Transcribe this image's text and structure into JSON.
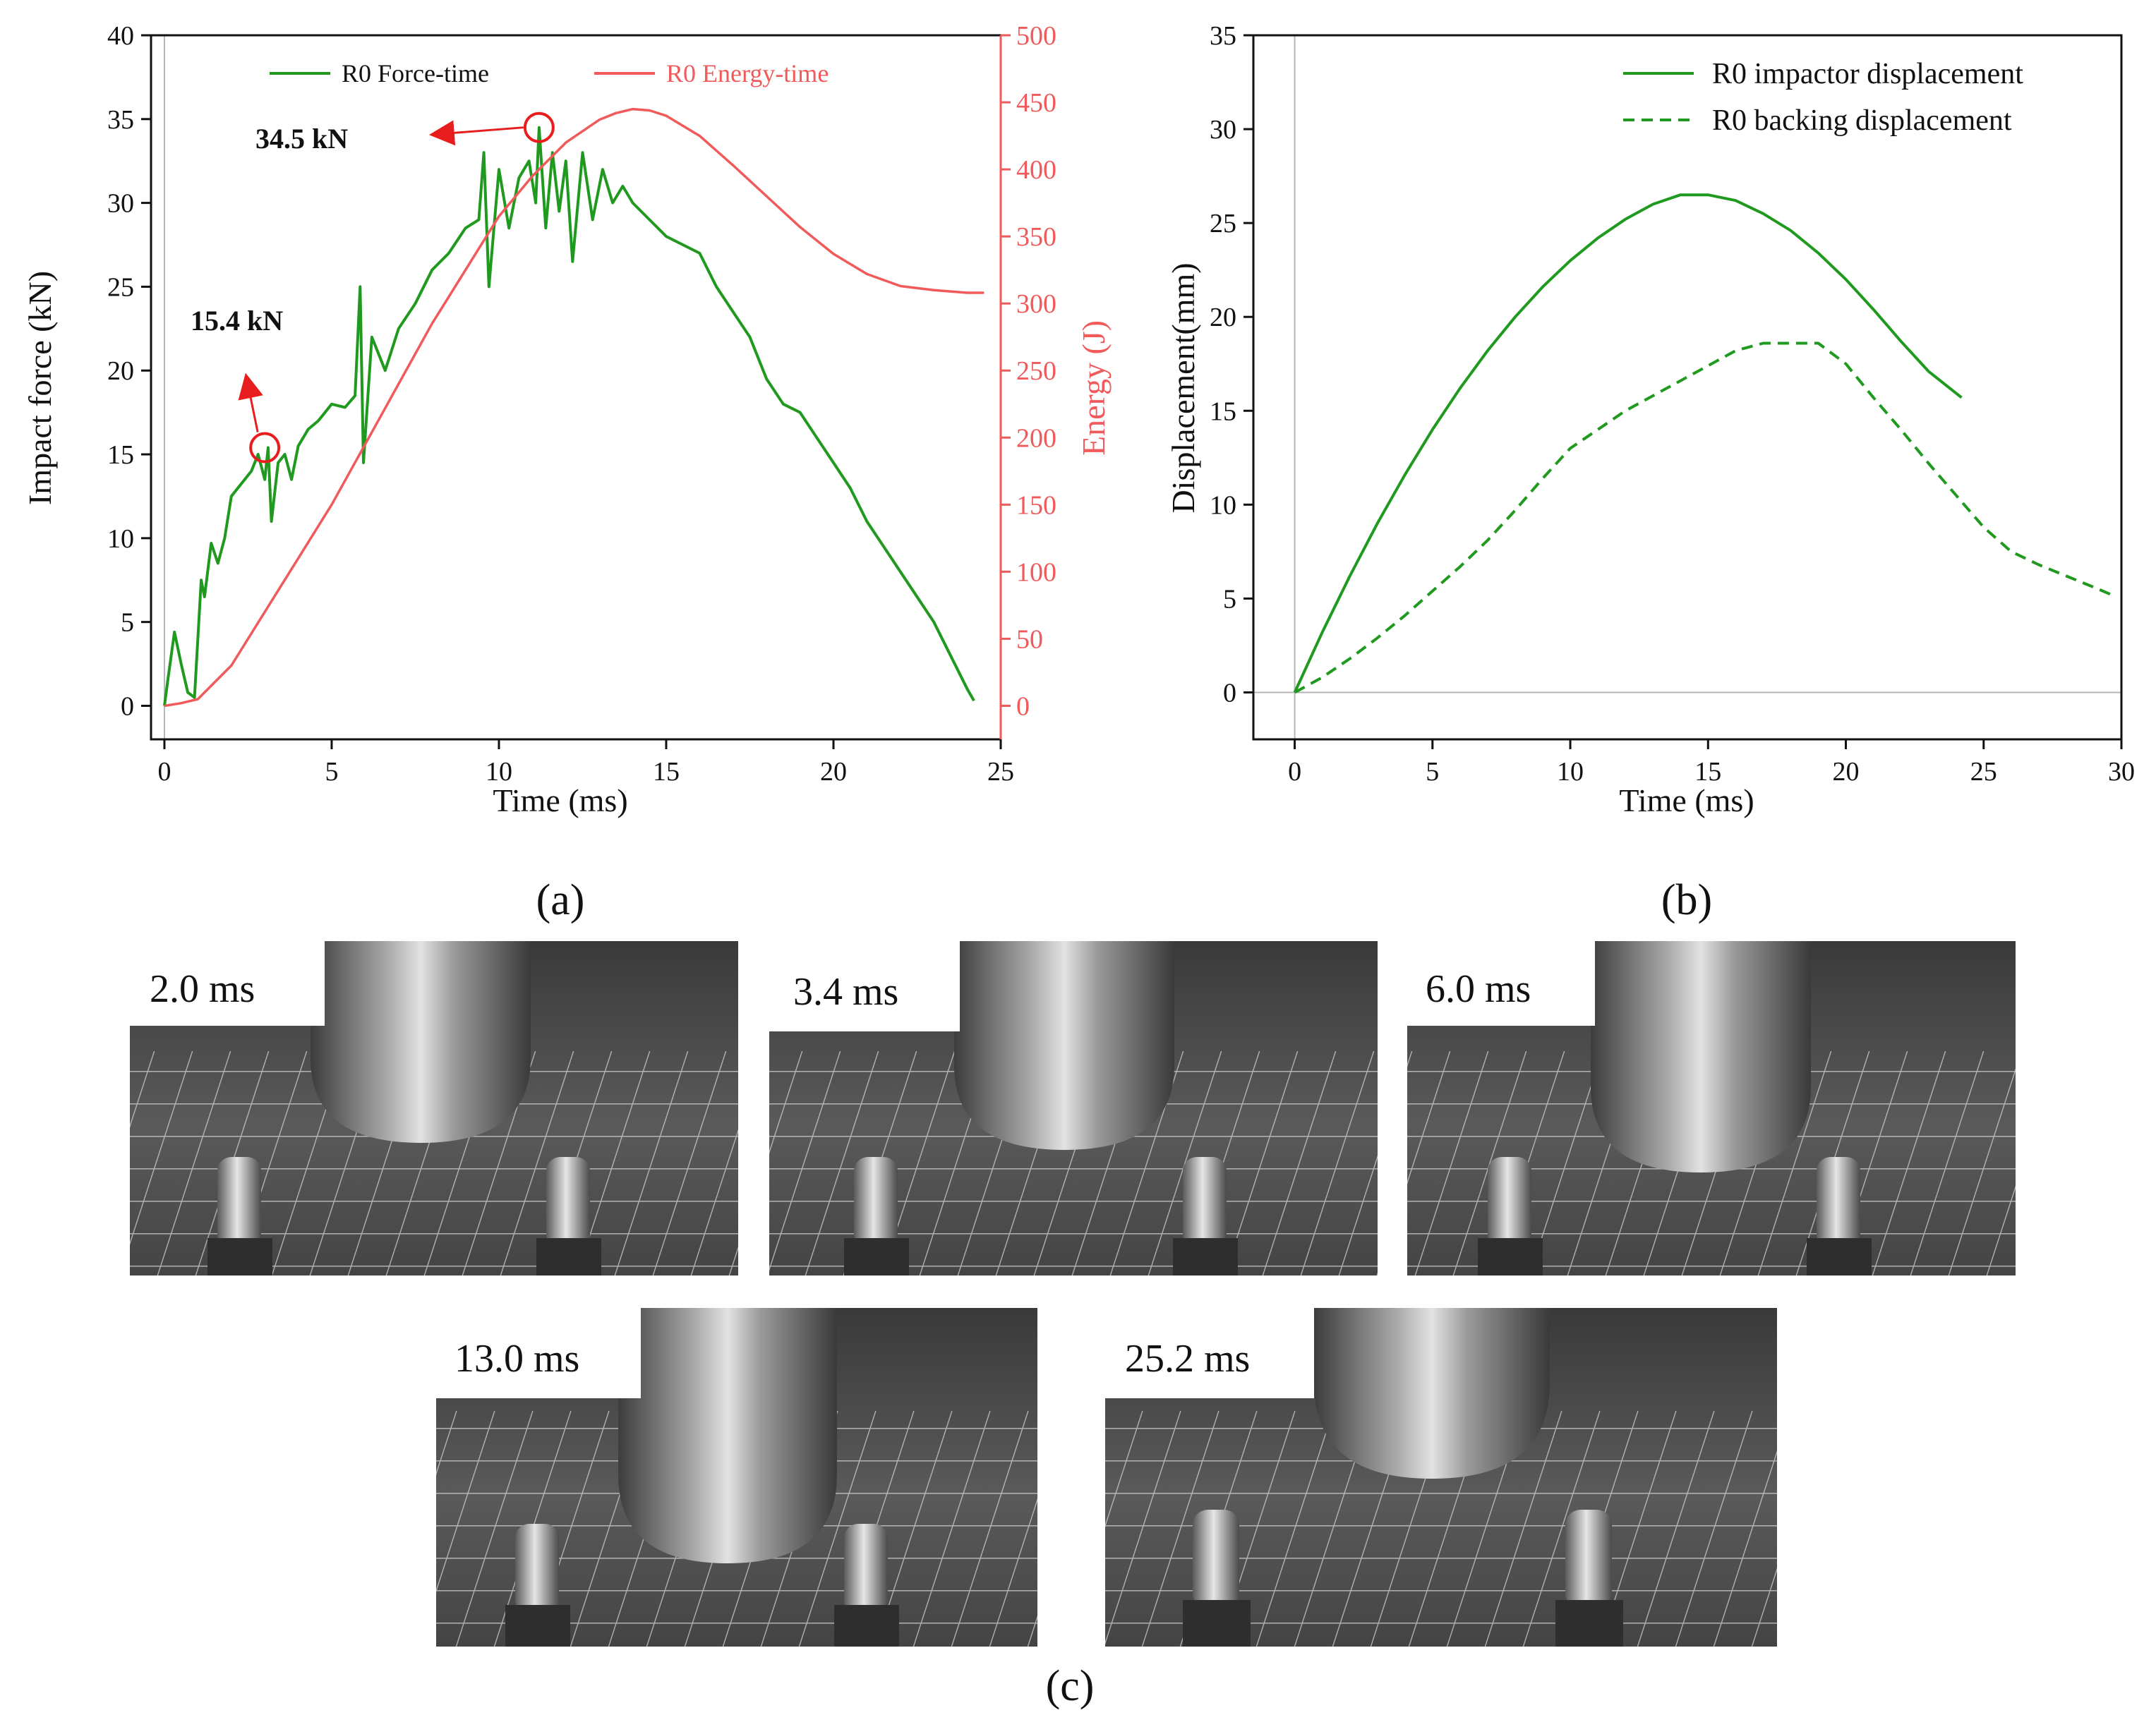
{
  "colors": {
    "green": "#1f9a1f",
    "red": "#f05a5a",
    "axis": "#111111",
    "annotation_red": "#e81e1e"
  },
  "chart_data": [
    {
      "panel": "a",
      "type": "line",
      "caption": "(a)",
      "xlabel": "Time (ms)",
      "ylabel": "Impact force (kN)",
      "y2label": "Energy (J)",
      "xlim": [
        0,
        25
      ],
      "ylim": [
        0,
        40
      ],
      "y2lim": [
        0,
        500
      ],
      "xticks": [
        0,
        5,
        10,
        15,
        20,
        25
      ],
      "yticks": [
        0,
        5,
        10,
        15,
        20,
        25,
        30,
        35,
        40
      ],
      "y2ticks": [
        0,
        50,
        100,
        150,
        200,
        250,
        300,
        350,
        400,
        450,
        500
      ],
      "legend_position": "top",
      "series": [
        {
          "name": "R0 Force-time",
          "axis": "left",
          "color": "#1f9a1f",
          "x": [
            0,
            0.1,
            0.3,
            0.5,
            0.7,
            0.9,
            1.1,
            1.2,
            1.4,
            1.6,
            1.8,
            2.0,
            2.2,
            2.4,
            2.6,
            2.8,
            3.0,
            3.1,
            3.2,
            3.4,
            3.6,
            3.8,
            4.0,
            4.3,
            4.6,
            5.0,
            5.4,
            5.7,
            5.85,
            5.95,
            6.2,
            6.6,
            7.0,
            7.5,
            8.0,
            8.5,
            9.0,
            9.4,
            9.55,
            9.7,
            10.0,
            10.3,
            10.6,
            10.9,
            11.1,
            11.2,
            11.4,
            11.6,
            11.8,
            12.0,
            12.2,
            12.5,
            12.8,
            13.1,
            13.4,
            13.7,
            14.0,
            14.5,
            15.0,
            15.5,
            16.0,
            16.5,
            17.0,
            17.5,
            18.0,
            18.5,
            19.0,
            19.5,
            20.0,
            20.5,
            21.0,
            21.5,
            22.0,
            22.5,
            23.0,
            23.5,
            24.0,
            24.2
          ],
          "y": [
            0,
            1.5,
            4.4,
            2.5,
            0.8,
            0.5,
            7.5,
            6.5,
            9.7,
            8.5,
            10.0,
            12.5,
            13.0,
            13.5,
            14.0,
            15.0,
            13.5,
            15.4,
            11.0,
            14.5,
            15.0,
            13.5,
            15.5,
            16.5,
            17.0,
            18.0,
            17.8,
            18.5,
            25.0,
            14.5,
            22.0,
            20.0,
            22.5,
            24.0,
            26.0,
            27.0,
            28.5,
            29.0,
            33.0,
            25.0,
            32.0,
            28.5,
            31.5,
            32.5,
            30.0,
            34.5,
            28.5,
            33.0,
            29.5,
            32.5,
            26.5,
            33.0,
            29.0,
            32.0,
            30.0,
            31.0,
            30.0,
            29.0,
            28.0,
            27.5,
            27.0,
            25.0,
            23.5,
            22.0,
            19.5,
            18.0,
            17.5,
            16.0,
            14.5,
            13.0,
            11.0,
            9.5,
            8.0,
            6.5,
            5.0,
            3.0,
            1.0,
            0.3
          ]
        },
        {
          "name": "R0 Energy-time",
          "axis": "right",
          "color": "#f05a5a",
          "x": [
            0,
            0.5,
            1.0,
            2.0,
            3.0,
            4.0,
            5.0,
            6.0,
            7.0,
            8.0,
            9.0,
            10.0,
            11.0,
            12.0,
            13.0,
            13.5,
            14.0,
            14.5,
            15.0,
            16.0,
            17.0,
            18.0,
            19.0,
            20.0,
            21.0,
            22.0,
            23.0,
            23.5,
            24.0,
            24.5
          ],
          "y": [
            0,
            2,
            5,
            30,
            70,
            110,
            150,
            195,
            240,
            285,
            325,
            365,
            395,
            420,
            437,
            442,
            445,
            444,
            440,
            425,
            403,
            380,
            357,
            337,
            322,
            313,
            310,
            309,
            308,
            308
          ]
        }
      ],
      "annotations": [
        {
          "text": "15.4 kN",
          "x": 3.0,
          "y": 15.4,
          "arrow": "up-left"
        },
        {
          "text": "34.5 kN",
          "x": 11.2,
          "y": 34.5,
          "arrow": "left"
        }
      ]
    },
    {
      "panel": "b",
      "type": "line",
      "caption": "(b)",
      "xlabel": "Time (ms)",
      "ylabel": "Displacement(mm)",
      "xlim": [
        -1.5,
        30
      ],
      "ylim": [
        -2.5,
        35
      ],
      "xticks": [
        0,
        5,
        10,
        15,
        20,
        25,
        30
      ],
      "yticks": [
        0,
        5,
        10,
        15,
        20,
        25,
        30,
        35
      ],
      "legend_position": "top-right",
      "series": [
        {
          "name": "R0 impactor displacement",
          "style": "solid",
          "color": "#1f9a1f",
          "x": [
            0,
            1,
            2,
            3,
            4,
            5,
            6,
            7,
            8,
            9,
            10,
            11,
            12,
            13,
            14,
            15,
            16,
            17,
            18,
            19,
            20,
            21,
            22,
            23,
            24.2
          ],
          "y": [
            0,
            3.2,
            6.2,
            9.0,
            11.6,
            14.0,
            16.2,
            18.2,
            20.0,
            21.6,
            23.0,
            24.2,
            25.2,
            26.0,
            26.5,
            26.5,
            26.2,
            25.5,
            24.6,
            23.4,
            22.0,
            20.4,
            18.7,
            17.1,
            15.7
          ]
        },
        {
          "name": "R0 backing displacement",
          "style": "dashed",
          "color": "#1f9a1f",
          "x": [
            0,
            1,
            2,
            3,
            4,
            5,
            6,
            7,
            8,
            9,
            10,
            11,
            12,
            13,
            14,
            15,
            16,
            17,
            18,
            19,
            20,
            21,
            22,
            23,
            24,
            25,
            26,
            27,
            28,
            29,
            29.8
          ],
          "y": [
            0,
            0.8,
            1.8,
            2.9,
            4.1,
            5.4,
            6.7,
            8.1,
            9.7,
            11.4,
            13.0,
            14.0,
            15.0,
            15.8,
            16.6,
            17.4,
            18.2,
            18.6,
            18.6,
            18.6,
            17.5,
            15.7,
            14.0,
            12.2,
            10.5,
            8.8,
            7.5,
            6.8,
            6.2,
            5.6,
            5.1
          ]
        }
      ]
    }
  ],
  "photos": {
    "caption": "(c)",
    "frames": [
      {
        "label": "2.0 ms"
      },
      {
        "label": "3.4 ms"
      },
      {
        "label": "6.0 ms"
      },
      {
        "label": "13.0 ms"
      },
      {
        "label": "25.2 ms"
      }
    ]
  }
}
